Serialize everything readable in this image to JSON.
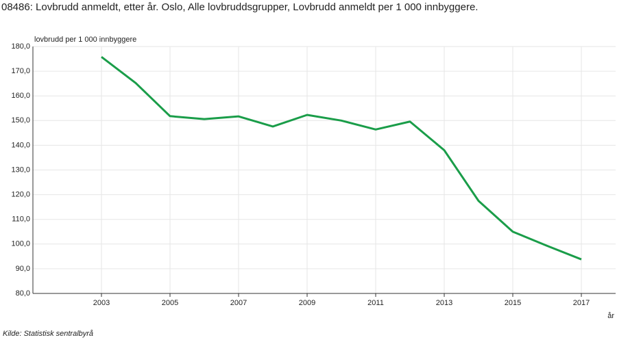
{
  "chart_data": {
    "type": "line",
    "title": "08486: Lovbrudd anmeldt, etter år. Oslo, Alle lovbruddsgrupper, Lovbrudd anmeldt per 1 000 innbyggere.",
    "y_label": "lovbrudd per 1 000 innbyggere",
    "x_label": "år",
    "source": "Kilde:  Statistisk sentralbyrå",
    "x": [
      2003,
      2004,
      2005,
      2006,
      2007,
      2008,
      2009,
      2010,
      2011,
      2012,
      2013,
      2014,
      2015,
      2016,
      2017
    ],
    "values": [
      175.8,
      165.2,
      151.8,
      150.6,
      151.7,
      147.6,
      152.3,
      150.0,
      146.4,
      149.6,
      138.0,
      117.5,
      105.0,
      99.3,
      93.8
    ],
    "color": "#1a9d49",
    "xlim": [
      2001,
      2018
    ],
    "xticks": [
      2003,
      2005,
      2007,
      2009,
      2011,
      2013,
      2015,
      2017
    ],
    "ylim": [
      80,
      180
    ],
    "yticks": [
      {
        "value": 80,
        "label": "80,0"
      },
      {
        "value": 90,
        "label": "90,0"
      },
      {
        "value": 100,
        "label": "100,0"
      },
      {
        "value": 110,
        "label": "110,0"
      },
      {
        "value": 120,
        "label": "120,0"
      },
      {
        "value": 130,
        "label": "130,0"
      },
      {
        "value": 140,
        "label": "140,0"
      },
      {
        "value": 150,
        "label": "150,0"
      },
      {
        "value": 160,
        "label": "160,0"
      },
      {
        "value": 170,
        "label": "170,0"
      },
      {
        "value": 180,
        "label": "180,0"
      }
    ],
    "grid": true
  }
}
